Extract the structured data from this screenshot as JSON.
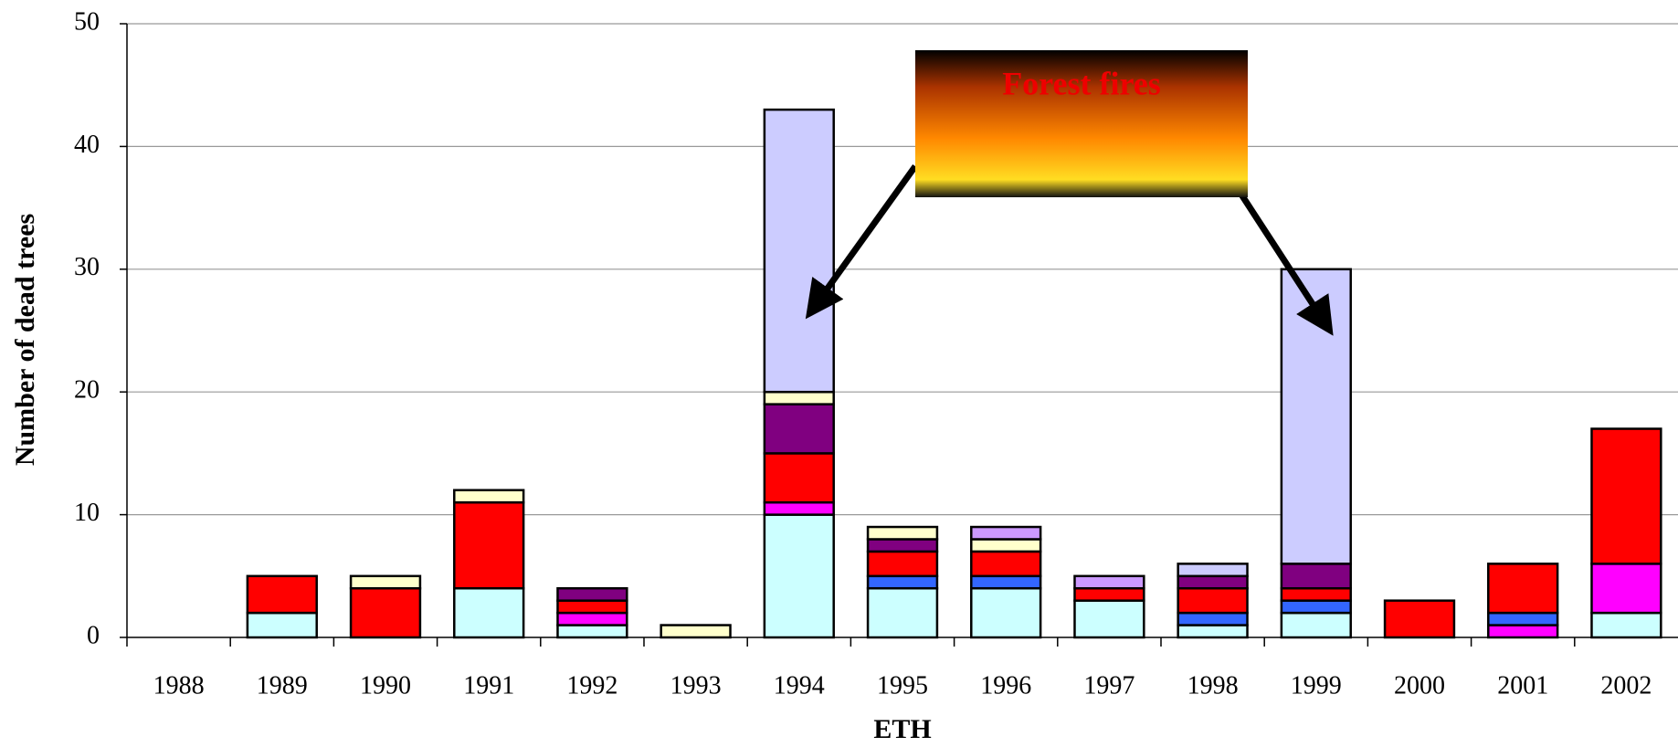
{
  "chart_data": {
    "type": "stacked_bar",
    "xlabel": "ETH",
    "ylabel": "Number of dead trees",
    "annotation": "Forest fires",
    "categories": [
      "1988",
      "1989",
      "1990",
      "1991",
      "1992",
      "1993",
      "1994",
      "1995",
      "1996",
      "1997",
      "1998",
      "1999",
      "2000",
      "2001",
      "2002"
    ],
    "series": [
      {
        "color": "#ccffff",
        "values": [
          0,
          2,
          0,
          4,
          1,
          0,
          10,
          4,
          4,
          3,
          1,
          2,
          0,
          0,
          2
        ]
      },
      {
        "color": "#ff00ff",
        "values": [
          0,
          0,
          0,
          0,
          1,
          0,
          1,
          0,
          0,
          0,
          0,
          0,
          0,
          1,
          4
        ]
      },
      {
        "color": "#3366ff",
        "values": [
          0,
          0,
          0,
          0,
          0,
          0,
          0,
          1,
          1,
          0,
          1,
          1,
          0,
          1,
          0
        ]
      },
      {
        "color": "#ff0000",
        "values": [
          0,
          3,
          4,
          7,
          1,
          0,
          4,
          2,
          2,
          1,
          2,
          1,
          3,
          4,
          11
        ]
      },
      {
        "color": "#800080",
        "values": [
          0,
          0,
          0,
          0,
          1,
          0,
          4,
          1,
          0,
          0,
          1,
          2,
          0,
          0,
          0
        ]
      },
      {
        "color": "#ffffcc",
        "values": [
          0,
          0,
          1,
          1,
          0,
          1,
          1,
          1,
          1,
          0,
          0,
          0,
          0,
          0,
          0
        ]
      },
      {
        "color": "#cc99ff",
        "values": [
          0,
          0,
          0,
          0,
          0,
          0,
          0,
          0,
          1,
          1,
          0,
          0,
          0,
          0,
          0
        ]
      },
      {
        "color": "#ccccff",
        "values": [
          0,
          0,
          0,
          0,
          0,
          0,
          23,
          0,
          0,
          0,
          1,
          24,
          0,
          0,
          0
        ]
      }
    ],
    "ylim": [
      0,
      50
    ],
    "yticks": [
      0,
      10,
      20,
      30,
      40,
      50
    ],
    "grid": true
  }
}
